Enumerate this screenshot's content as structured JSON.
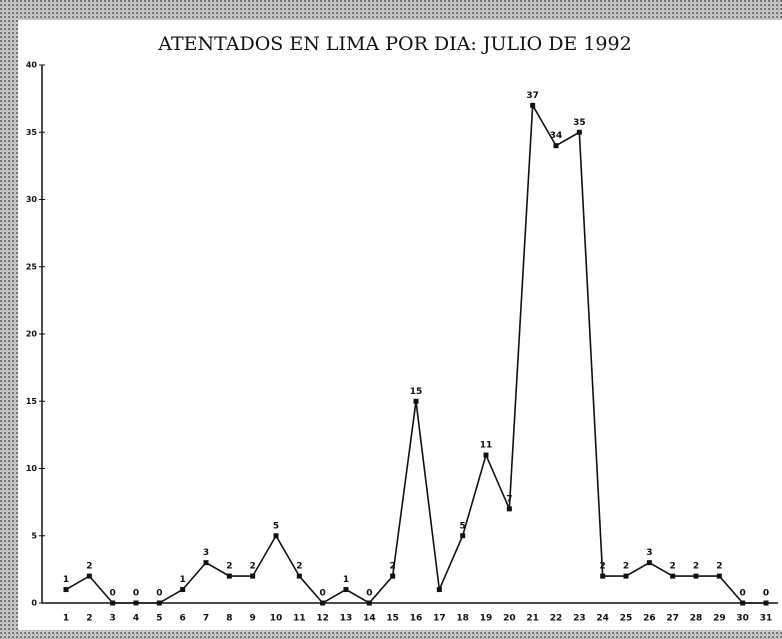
{
  "chart_data": {
    "type": "line",
    "title": "ATENTADOS EN LIMA POR DIA: JULIO DE 1992",
    "categories": [
      "1",
      "2",
      "3",
      "4",
      "5",
      "6",
      "7",
      "8",
      "9",
      "10",
      "11",
      "12",
      "13",
      "14",
      "15",
      "16",
      "17",
      "18",
      "19",
      "20",
      "21",
      "22",
      "23",
      "24",
      "25",
      "26",
      "27",
      "28",
      "29",
      "30",
      "31"
    ],
    "values": [
      1,
      2,
      0,
      0,
      0,
      1,
      3,
      2,
      2,
      5,
      2,
      0,
      1,
      0,
      2,
      15,
      1,
      5,
      11,
      7,
      37,
      34,
      35,
      2,
      2,
      3,
      2,
      2,
      2,
      0,
      0
    ],
    "value_labels": [
      "1",
      "2",
      "0",
      "0",
      "0",
      "1",
      "3",
      "2",
      "2",
      "5",
      "2",
      "0",
      "1",
      "0",
      "2",
      "15",
      null,
      "5",
      "11",
      "7",
      "37",
      "34",
      "35",
      "2",
      "2",
      "3",
      "2",
      "2",
      "2",
      "0",
      "0"
    ],
    "color": "#111111",
    "ylim": [
      0,
      40
    ],
    "yticks": [
      0,
      5,
      10,
      15,
      20,
      25,
      30,
      35,
      40
    ],
    "grid": false
  }
}
